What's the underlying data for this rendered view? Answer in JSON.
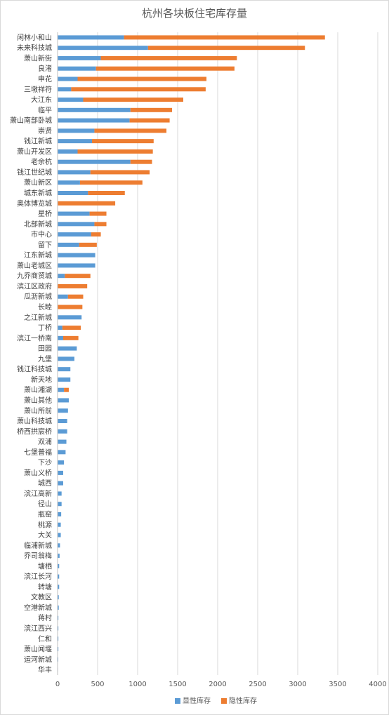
{
  "chart_data": {
    "type": "bar",
    "orientation": "horizontal",
    "stacked": true,
    "title": "杭州各块板住宅库存量",
    "xlabel": "",
    "ylabel": "",
    "xlim": [
      0,
      4000
    ],
    "x_ticks": [
      0,
      500,
      1000,
      1500,
      2000,
      2500,
      3000,
      3500,
      4000
    ],
    "grid": "vertical",
    "legend_position": "bottom",
    "categories": [
      "闲林小和山",
      "未来科技城",
      "萧山新街",
      "良渚",
      "申花",
      "三墩祥符",
      "大江东",
      "临平",
      "萧山南部卧城",
      "崇贤",
      "钱江新城",
      "萧山开发区",
      "老余杭",
      "钱江世纪城",
      "萧山新区",
      "城东新城",
      "奥体博览城",
      "星桥",
      "北部新城",
      "市中心",
      "留下",
      "江东新城",
      "萧山老城区",
      "九乔商贸城",
      "滨江区政府",
      "瓜沥新城",
      "长睦",
      "之江新城",
      "丁桥",
      "滨江一桥南",
      "田园",
      "九堡",
      "钱江科技城",
      "新天地",
      "萧山湘湖",
      "萧山其他",
      "萧山所前",
      "萧山科技城",
      "桥西拱宸桥",
      "双浦",
      "七堡普福",
      "下沙",
      "萧山义桥",
      "城西",
      "滨江高新",
      "径山",
      "瓶窑",
      "桃源",
      "大关",
      "临浦新城",
      "乔司翁梅",
      "塘栖",
      "滨江长河",
      "转塘",
      "文教区",
      "空港新城",
      "蒋村",
      "滨江西兴",
      "仁和",
      "萧山闻堰",
      "运河新城",
      "华丰"
    ],
    "series": [
      {
        "name": "显性库存",
        "color": "#5B9BD5",
        "values": [
          830,
          1130,
          540,
          480,
          250,
          170,
          320,
          910,
          900,
          460,
          430,
          250,
          910,
          410,
          280,
          380,
          0,
          400,
          460,
          420,
          270,
          470,
          470,
          90,
          0,
          130,
          0,
          300,
          60,
          70,
          240,
          210,
          160,
          160,
          80,
          140,
          130,
          120,
          120,
          110,
          100,
          80,
          70,
          70,
          50,
          50,
          45,
          40,
          40,
          30,
          25,
          20,
          20,
          20,
          15,
          15,
          10,
          10,
          10,
          10,
          8,
          5
        ]
      },
      {
        "name": "隐性库存",
        "color": "#ED7D31",
        "values": [
          2510,
          1960,
          1700,
          1730,
          1610,
          1680,
          1250,
          520,
          500,
          900,
          770,
          940,
          270,
          740,
          780,
          460,
          720,
          210,
          150,
          120,
          220,
          0,
          0,
          320,
          370,
          190,
          310,
          0,
          230,
          190,
          0,
          0,
          0,
          0,
          60,
          0,
          0,
          0,
          0,
          0,
          0,
          0,
          0,
          0,
          0,
          0,
          0,
          0,
          0,
          0,
          0,
          0,
          0,
          0,
          0,
          0,
          0,
          0,
          0,
          0,
          0,
          0
        ]
      }
    ]
  },
  "colors": {
    "axis": "#bfbfbf",
    "grid": "#d9d9d9",
    "text": "#404040"
  }
}
